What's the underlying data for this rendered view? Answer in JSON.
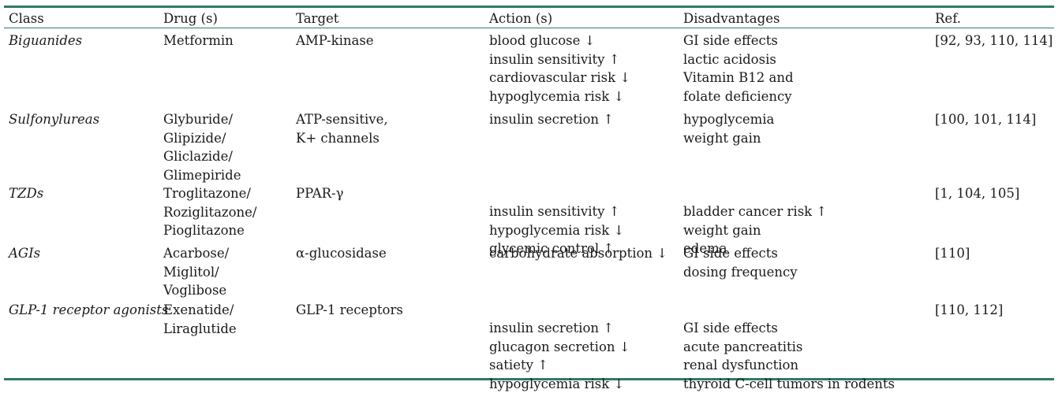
{
  "headers": [
    "Class",
    "Drug (s)",
    "Target",
    "Action (s)",
    "Disadvantages",
    "Ref."
  ],
  "rows": [
    {
      "class": "Biguanides",
      "drugs": [
        "Metformin"
      ],
      "target": [
        "AMP-kinase"
      ],
      "actions": [
        "blood glucose ↓",
        "insulin sensitivity ↑",
        "cardiovascular risk ↓",
        "hypoglycemia risk ↓"
      ],
      "disadvantages": [
        "GI side effects",
        "lactic acidosis",
        "Vitamin B12 and",
        "folate deficiency"
      ],
      "ref": "[92, 93, 110, 114]"
    },
    {
      "class": "Sulfonylureas",
      "drugs": [
        "Glyburide/",
        "Glipizide/",
        "Gliclazide/",
        "Glimepiride"
      ],
      "target": [
        "ATP-sensitive,",
        "K+ channels"
      ],
      "actions": [
        "insulin secretion ↑"
      ],
      "disadvantages": [
        "hypoglycemia",
        "weight gain"
      ],
      "ref": "[100, 101, 114]"
    },
    {
      "class": "TZDs",
      "drugs": [
        "Troglitazone/",
        "Roziglitazone/",
        "Pioglitazone"
      ],
      "target": [
        "PPAR-γ"
      ],
      "actions": [
        "insulin sensitivity ↑",
        "hypoglycemia risk ↓",
        "glycemic control ↑"
      ],
      "disadvantages": [
        "bladder cancer risk ↑",
        "weight gain",
        "edema"
      ],
      "ref": "[1, 104, 105]"
    },
    {
      "class": "AGIs",
      "drugs": [
        "Acarbose/",
        "Miglitol/",
        "Voglibose"
      ],
      "target": [
        "α-glucosidase"
      ],
      "actions": [
        "carbohydrate absorption ↓"
      ],
      "disadvantages": [
        "GI side effects",
        "dosing frequency"
      ],
      "ref": "[110]"
    },
    {
      "class": "GLP-1 receptor agonists",
      "drugs": [
        "Exenatide/",
        "Liraglutide"
      ],
      "target": [
        "GLP-1 receptors"
      ],
      "actions": [
        "insulin secretion ↑",
        "glucagon secretion ↓",
        "satiety ↑",
        "hypoglycemia risk ↓"
      ],
      "disadvantages": [
        "GI side effects",
        "acute pancreatitis",
        "renal dysfunction",
        "thyroid C-cell tumors in rodents"
      ],
      "ref": "[110, 112]"
    }
  ]
}
